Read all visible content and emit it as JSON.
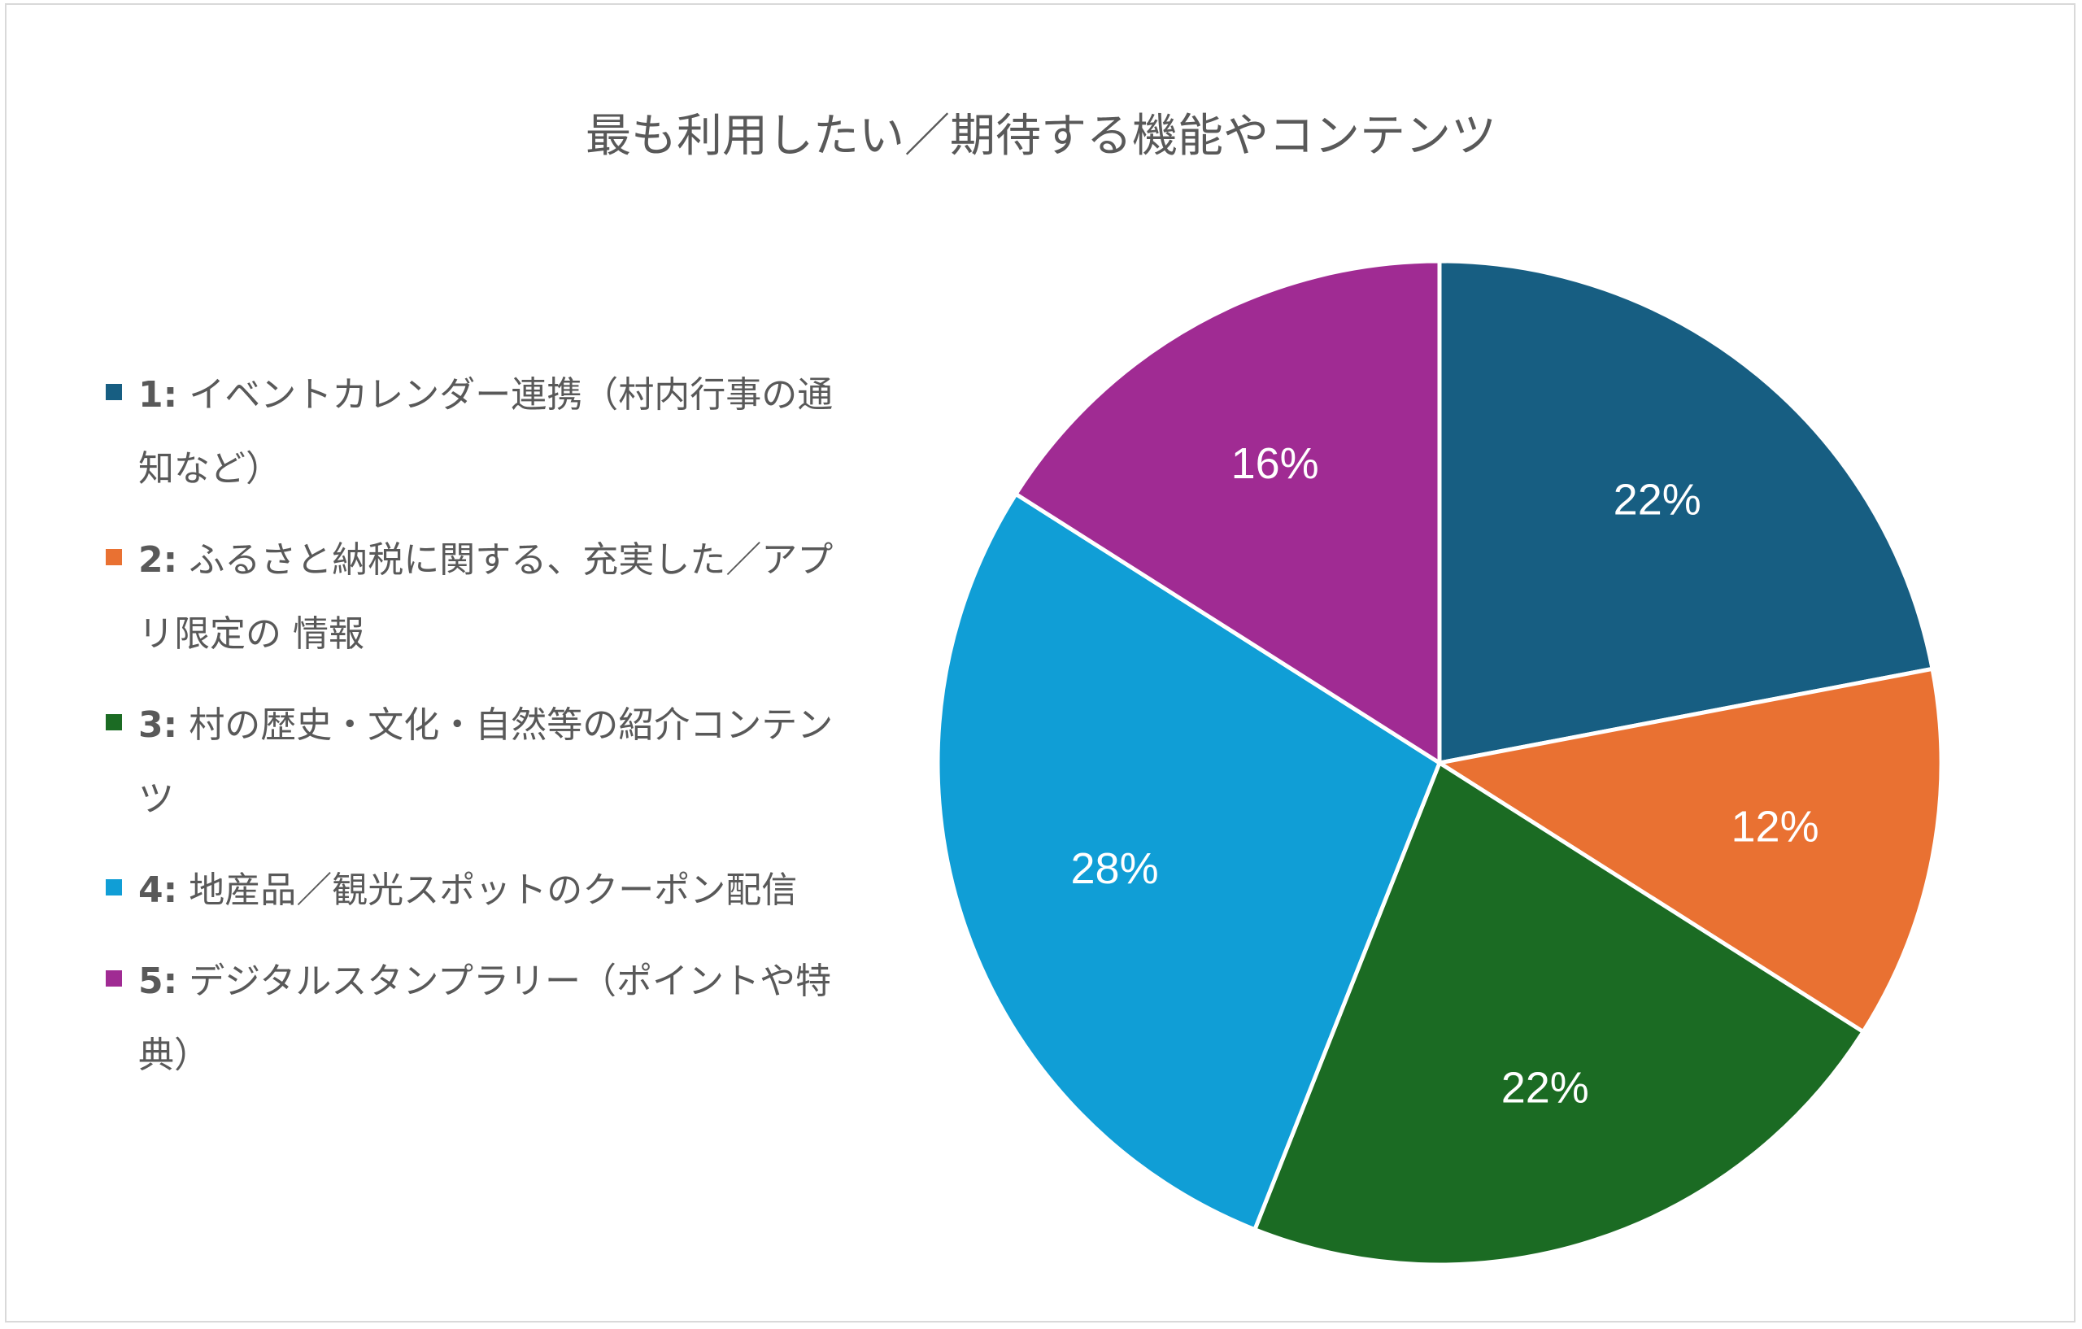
{
  "chart_data": {
    "type": "pie",
    "title": "最も利用したい／期待する機能やコンテンツ",
    "start_angle_deg": 0,
    "direction": "clockwise",
    "legend_position": "left",
    "slices": [
      {
        "id": "1:",
        "label": "イベントカレンダー連携（村内行事の通知など）",
        "value": 22,
        "display": "22%",
        "color": "#175e82"
      },
      {
        "id": "2:",
        "label": "ふるさと納税に関する、充実した／アプリ限定の 情報",
        "value": 12,
        "display": "12%",
        "color": "#e97132"
      },
      {
        "id": "3:",
        "label": "村の歴史・文化・自然等の紹介コンテンツ",
        "value": 22,
        "display": "22%",
        "color": "#1b6b23"
      },
      {
        "id": "4:",
        "label": "地産品／観光スポットのクーポン配信",
        "value": 28,
        "display": "28%",
        "color": "#109ed6"
      },
      {
        "id": "5:",
        "label": "デジタルスタンプラリー（ポイントや特典）",
        "value": 16,
        "display": "16%",
        "color": "#a02b93"
      }
    ]
  }
}
